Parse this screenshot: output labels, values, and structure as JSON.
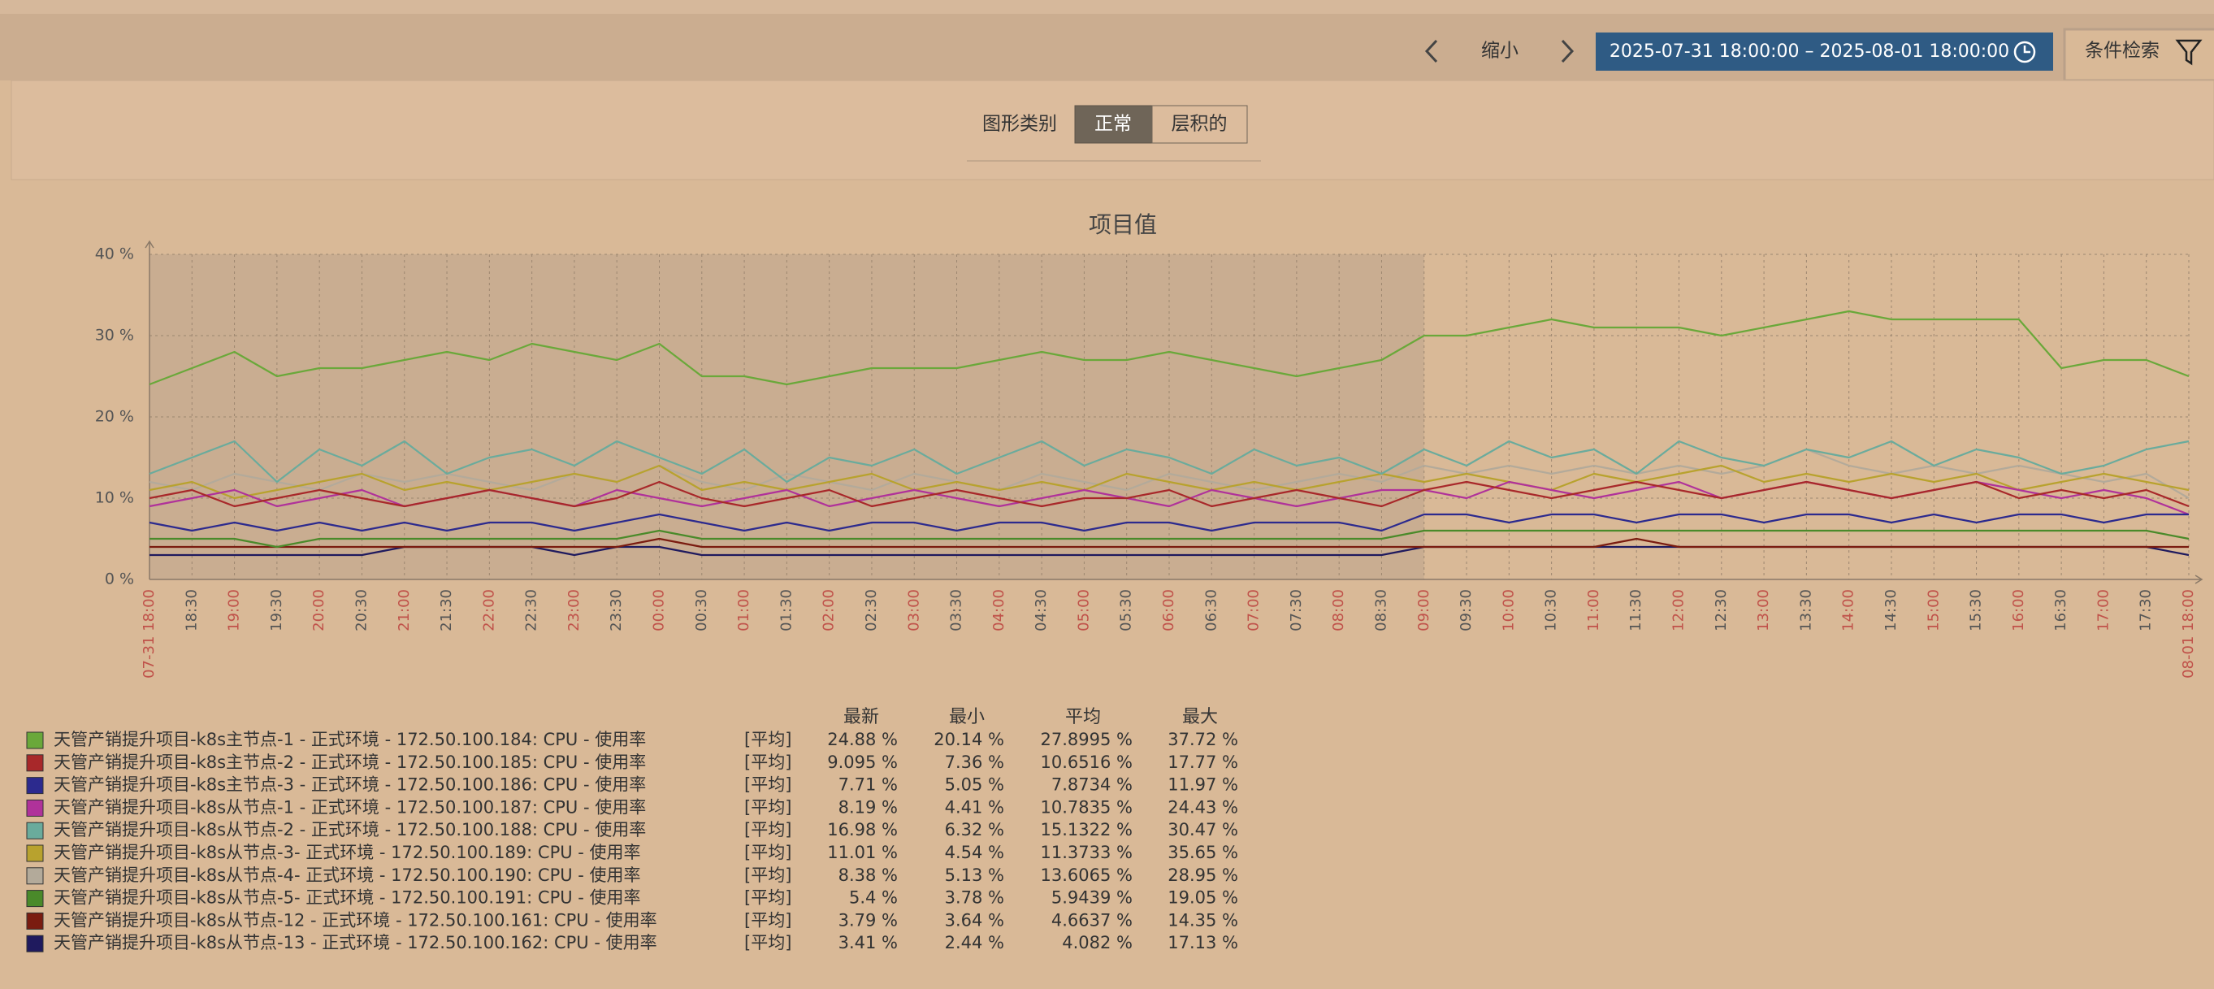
{
  "toolbar": {
    "zoom_out": "缩小",
    "date_range": "2025-07-31 18:00:00 – 2025-08-01 18:00:00",
    "filter_button": "条件检索"
  },
  "filter": {
    "label": "图形类别",
    "options": [
      "正常",
      "层积的"
    ]
  },
  "chart_data": {
    "type": "line",
    "title": "项目值",
    "categories": [
      "07-31 18:00",
      "18:30",
      "19:00",
      "19:30",
      "20:00",
      "20:30",
      "21:00",
      "21:30",
      "22:00",
      "22:30",
      "23:00",
      "23:30",
      "00:00",
      "00:30",
      "01:00",
      "01:30",
      "02:00",
      "02:30",
      "03:00",
      "03:30",
      "04:00",
      "04:30",
      "05:00",
      "05:30",
      "06:00",
      "06:30",
      "07:00",
      "07:30",
      "08:00",
      "08:30",
      "09:00",
      "09:30",
      "10:00",
      "10:30",
      "11:00",
      "11:30",
      "12:00",
      "12:30",
      "13:00",
      "13:30",
      "14:00",
      "14:30",
      "15:00",
      "15:30",
      "16:00",
      "16:30",
      "17:00",
      "17:30",
      "08-01 18:00"
    ],
    "x_major_every": 2,
    "x_major_color": "#c0524a",
    "x_minor_color": "#555555",
    "shade_x": [
      "07-31 18:00",
      "09:00"
    ],
    "ylim": [
      0,
      40
    ],
    "yticks": [
      {
        "value": 0,
        "label": "0 %"
      },
      {
        "value": 10,
        "label": "10 %"
      },
      {
        "value": 20,
        "label": "20 %"
      },
      {
        "value": 30,
        "label": "30 %"
      },
      {
        "value": 40,
        "label": "40 %"
      }
    ],
    "grid": true,
    "legend_columns": [
      "最新",
      "最小",
      "平均",
      "最大"
    ],
    "series": [
      {
        "name": "天管产销提升项目-k8s主节点-1 - 正式环境 - 172.50.100.184: CPU - 使用率",
        "color": "#6aa83a",
        "function": "[平均]",
        "stats": [
          "24.88 %",
          "20.14 %",
          "27.8995 %",
          "37.72 %"
        ],
        "values": [
          24,
          26,
          28,
          25,
          26,
          26,
          27,
          28,
          27,
          29,
          28,
          27,
          29,
          25,
          25,
          24,
          25,
          26,
          26,
          26,
          27,
          28,
          27,
          27,
          28,
          27,
          26,
          25,
          26,
          27,
          30,
          30,
          31,
          32,
          31,
          31,
          31,
          30,
          31,
          32,
          33,
          32,
          32,
          32,
          32,
          26,
          27,
          27,
          25
        ]
      },
      {
        "name": "天管产销提升项目-k8s主节点-2 - 正式环境 - 172.50.100.185: CPU - 使用率",
        "color": "#a8282a",
        "function": "[平均]",
        "stats": [
          "9.095 %",
          "7.36 %",
          "10.6516 %",
          "17.77 %"
        ],
        "values": [
          10,
          11,
          9,
          10,
          11,
          10,
          9,
          10,
          11,
          10,
          9,
          10,
          12,
          10,
          9,
          10,
          11,
          9,
          10,
          11,
          10,
          9,
          10,
          10,
          11,
          9,
          10,
          11,
          10,
          9,
          11,
          12,
          11,
          10,
          11,
          12,
          11,
          10,
          11,
          12,
          11,
          10,
          11,
          12,
          10,
          11,
          10,
          11,
          9
        ]
      },
      {
        "name": "天管产销提升项目-k8s主节点-3 - 正式环境 - 172.50.100.186: CPU - 使用率",
        "color": "#2c2a8e",
        "function": "[平均]",
        "stats": [
          "7.71 %",
          "5.05 %",
          "7.8734 %",
          "11.97 %"
        ],
        "values": [
          7,
          6,
          7,
          6,
          7,
          6,
          7,
          6,
          7,
          7,
          6,
          7,
          8,
          7,
          6,
          7,
          6,
          7,
          7,
          6,
          7,
          7,
          6,
          7,
          7,
          6,
          7,
          7,
          7,
          6,
          8,
          8,
          7,
          8,
          8,
          7,
          8,
          8,
          7,
          8,
          8,
          7,
          8,
          7,
          8,
          8,
          7,
          8,
          8
        ]
      },
      {
        "name": "天管产销提升项目-k8s从节点-1 - 正式环境 - 172.50.100.187: CPU - 使用率",
        "color": "#b0329a",
        "function": "[平均]",
        "stats": [
          "8.19 %",
          "4.41 %",
          "10.7835 %",
          "24.43 %"
        ],
        "values": [
          9,
          10,
          11,
          9,
          10,
          11,
          9,
          10,
          11,
          10,
          9,
          11,
          10,
          9,
          10,
          11,
          9,
          10,
          11,
          10,
          9,
          10,
          11,
          10,
          9,
          11,
          10,
          9,
          10,
          11,
          11,
          10,
          12,
          11,
          10,
          11,
          12,
          10,
          11,
          12,
          11,
          10,
          11,
          12,
          11,
          10,
          11,
          10,
          8
        ]
      },
      {
        "name": "天管产销提升项目-k8s从节点-2 - 正式环境 - 172.50.100.188: CPU - 使用率",
        "color": "#6aab9c",
        "function": "[平均]",
        "stats": [
          "16.98 %",
          "6.32 %",
          "15.1322 %",
          "30.47 %"
        ],
        "values": [
          13,
          15,
          17,
          12,
          16,
          14,
          17,
          13,
          15,
          16,
          14,
          17,
          15,
          13,
          16,
          12,
          15,
          14,
          16,
          13,
          15,
          17,
          14,
          16,
          15,
          13,
          16,
          14,
          15,
          13,
          16,
          14,
          17,
          15,
          16,
          13,
          17,
          15,
          14,
          16,
          15,
          17,
          14,
          16,
          15,
          13,
          14,
          16,
          17
        ]
      },
      {
        "name": "天管产销提升项目-k8s从节点-3- 正式环境 - 172.50.100.189: CPU - 使用率",
        "color": "#b8a22e",
        "function": "[平均]",
        "stats": [
          "11.01 %",
          "4.54 %",
          "11.3733 %",
          "35.65 %"
        ],
        "values": [
          11,
          12,
          10,
          11,
          12,
          13,
          11,
          12,
          11,
          12,
          13,
          12,
          14,
          11,
          12,
          11,
          12,
          13,
          11,
          12,
          11,
          12,
          11,
          13,
          12,
          11,
          12,
          11,
          12,
          13,
          12,
          13,
          12,
          11,
          13,
          12,
          13,
          14,
          12,
          13,
          12,
          13,
          12,
          13,
          11,
          12,
          13,
          12,
          11
        ]
      },
      {
        "name": "天管产销提升项目-k8s从节点-4- 正式环境 - 172.50.100.190: CPU - 使用率",
        "color": "#b3aa9a",
        "function": "[平均]",
        "stats": [
          "8.38 %",
          "5.13 %",
          "13.6065 %",
          "28.95 %"
        ],
        "values": [
          12,
          11,
          13,
          12,
          11,
          13,
          12,
          13,
          12,
          11,
          13,
          12,
          14,
          12,
          11,
          13,
          12,
          11,
          13,
          12,
          11,
          13,
          12,
          11,
          13,
          12,
          11,
          12,
          13,
          12,
          14,
          13,
          14,
          13,
          14,
          13,
          14,
          13,
          14,
          16,
          14,
          13,
          14,
          13,
          14,
          13,
          12,
          13,
          10
        ]
      },
      {
        "name": "天管产销提升项目-k8s从节点-5- 正式环境 - 172.50.100.191: CPU - 使用率",
        "color": "#4a8a2a",
        "function": "[平均]",
        "stats": [
          "5.4 %",
          "3.78 %",
          "5.9439 %",
          "19.05 %"
        ],
        "values": [
          5,
          5,
          5,
          4,
          5,
          5,
          5,
          5,
          5,
          5,
          5,
          5,
          6,
          5,
          5,
          5,
          5,
          5,
          5,
          5,
          5,
          5,
          5,
          5,
          5,
          5,
          5,
          5,
          5,
          5,
          6,
          6,
          6,
          6,
          6,
          6,
          6,
          6,
          6,
          6,
          6,
          6,
          6,
          6,
          6,
          6,
          6,
          6,
          5
        ]
      },
      {
        "name": "天管产销提升项目-k8s从节点-12 - 正式环境 - 172.50.100.161: CPU - 使用率",
        "color": "#7a1c10",
        "function": "[平均]",
        "stats": [
          "3.79 %",
          "3.64 %",
          "4.6637 %",
          "14.35 %"
        ],
        "values": [
          4,
          4,
          4,
          4,
          4,
          4,
          4,
          4,
          4,
          4,
          4,
          4,
          5,
          4,
          4,
          4,
          4,
          4,
          4,
          4,
          4,
          4,
          4,
          4,
          4,
          4,
          4,
          4,
          4,
          4,
          4,
          4,
          4,
          4,
          4,
          5,
          4,
          4,
          4,
          4,
          4,
          4,
          4,
          4,
          4,
          4,
          4,
          4,
          4
        ]
      },
      {
        "name": "天管产销提升项目-k8s从节点-13 - 正式环境 - 172.50.100.162: CPU - 使用率",
        "color": "#1f1a5e",
        "function": "[平均]",
        "stats": [
          "3.41 %",
          "2.44 %",
          "4.082 %",
          "17.13 %"
        ],
        "values": [
          3,
          3,
          3,
          3,
          3,
          3,
          4,
          4,
          4,
          4,
          3,
          4,
          4,
          3,
          3,
          3,
          3,
          3,
          3,
          3,
          3,
          3,
          3,
          3,
          3,
          3,
          3,
          3,
          3,
          3,
          4,
          4,
          4,
          4,
          4,
          4,
          4,
          4,
          4,
          4,
          4,
          4,
          4,
          4,
          4,
          4,
          4,
          4,
          3
        ]
      }
    ]
  }
}
